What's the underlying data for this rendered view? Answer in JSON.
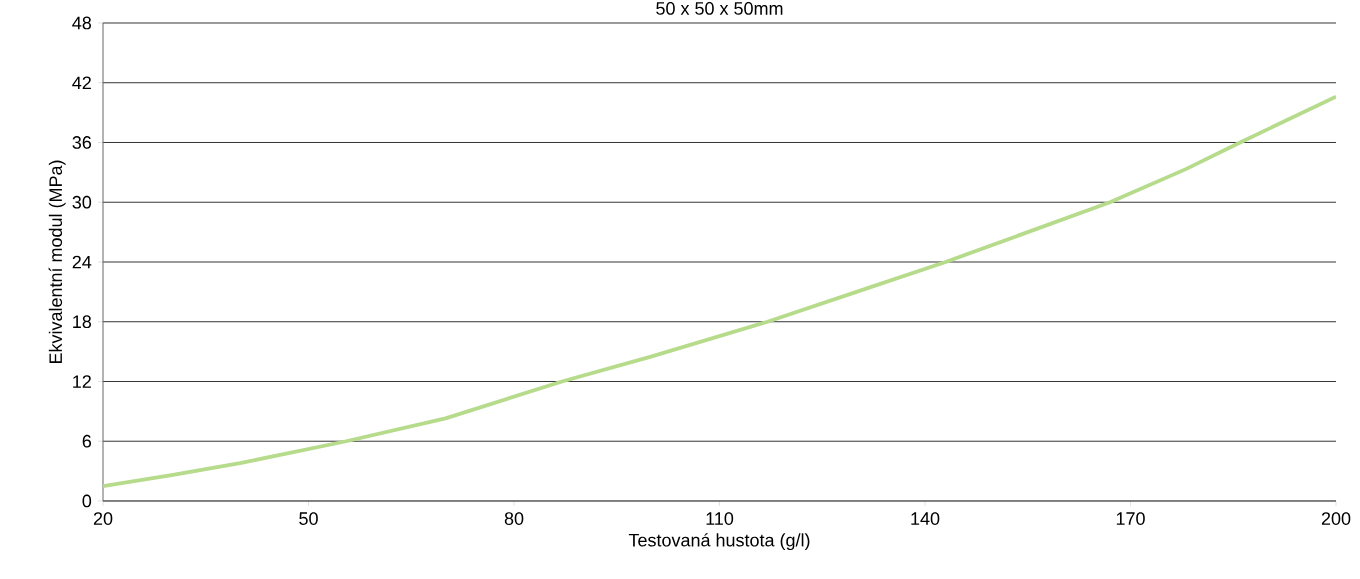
{
  "chart_data": {
    "type": "line",
    "title": "50 x 50 x 50mm",
    "xlabel": "Testovaná hustota (g/l)",
    "ylabel": "Ekvivalentní modul (MPa)",
    "x": [
      20,
      30,
      40,
      55.5,
      70,
      87,
      100,
      117,
      130,
      143,
      155,
      167,
      178,
      186,
      200
    ],
    "series": [
      {
        "color": "#b5db8b",
        "values": [
          1.5,
          2.6,
          3.8,
          6,
          8.3,
          12,
          14.5,
          18,
          21,
          24,
          27,
          30,
          33.3,
          36,
          40.6
        ]
      }
    ],
    "xlim": [
      20,
      200
    ],
    "xticks": [
      20,
      50,
      80,
      110,
      140,
      170,
      200
    ],
    "ylim": [
      0,
      48
    ],
    "yticks": [
      0,
      6,
      12,
      18,
      24,
      30,
      36,
      42,
      48
    ],
    "grid": "y",
    "marker": "none",
    "line_style": "solid"
  }
}
